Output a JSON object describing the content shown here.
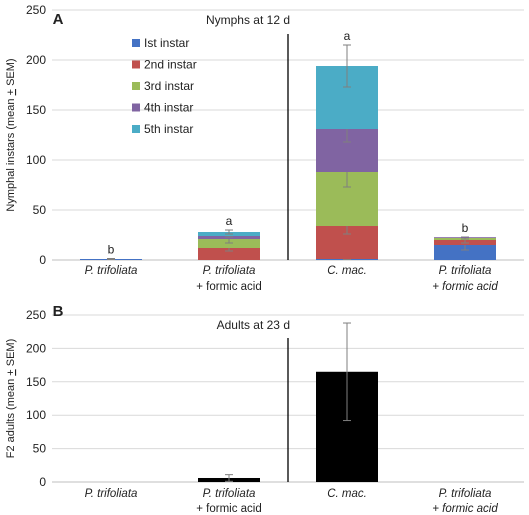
{
  "chart_data": [
    {
      "type": "bar",
      "panel": "A",
      "title": "Nymphs at 12 d",
      "ylabel": "Nymphal instars (mean + SEM)",
      "ylim": [
        0,
        250
      ],
      "yticks": [
        0,
        50,
        100,
        150,
        200,
        250
      ],
      "grid": true,
      "legend_position": "top-left",
      "categories": [
        {
          "italic": "P. trifoliata",
          "rest": ""
        },
        {
          "italic": "P. trifoliata",
          "rest": "+ formic acid"
        },
        {
          "italic": "C. mac.",
          "rest": ""
        },
        {
          "italic": "P. trifoliata",
          "rest": "+ formic acid"
        }
      ],
      "series": [
        {
          "name": "Ist instar",
          "color": "#4472c4",
          "values": [
            1,
            0,
            1,
            15
          ]
        },
        {
          "name": "2nd instar",
          "color": "#c0504d",
          "values": [
            0,
            12,
            33,
            5
          ]
        },
        {
          "name": "3rd instar",
          "color": "#9bbb59",
          "values": [
            0,
            9,
            54,
            2
          ]
        },
        {
          "name": "4th instar",
          "color": "#8064a2",
          "values": [
            0,
            3,
            43,
            0.5
          ]
        },
        {
          "name": "5th instar",
          "color": "#4bacc6",
          "values": [
            0,
            4,
            63,
            0
          ]
        }
      ],
      "errors": [
        [
          0.5,
          0,
          0.5,
          5
        ],
        [
          0,
          3,
          8,
          3
        ],
        [
          0,
          4,
          15,
          1
        ],
        [
          0,
          1,
          13,
          0
        ],
        [
          0,
          2,
          21,
          0
        ]
      ],
      "significance": [
        "b",
        "a",
        "a",
        "b"
      ],
      "divider_after_category": 2
    },
    {
      "type": "bar",
      "panel": "B",
      "title": "Adults at 23 d",
      "ylabel": "F2 adults (mean + SEM)",
      "ylim": [
        0,
        250
      ],
      "yticks": [
        0,
        50,
        100,
        150,
        200,
        250
      ],
      "grid": true,
      "categories": [
        {
          "italic": "P. trifoliata",
          "rest": ""
        },
        {
          "italic": "P. trifoliata",
          "rest": "+ formic acid"
        },
        {
          "italic": "C. mac.",
          "rest": ""
        },
        {
          "italic": "P. trifoliata",
          "rest": "+ formic acid"
        }
      ],
      "series": [
        {
          "name": "",
          "color": "#000000",
          "values": [
            0,
            6,
            165,
            0
          ]
        }
      ],
      "errors": [
        [
          0,
          5,
          73,
          0
        ]
      ],
      "divider_after_category": 2
    }
  ]
}
